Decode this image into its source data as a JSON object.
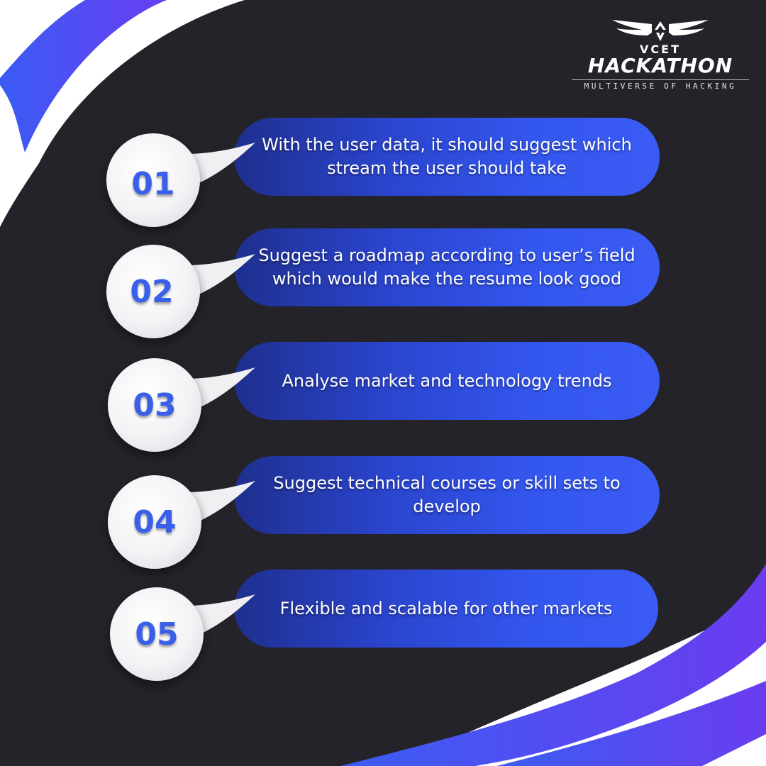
{
  "logo": {
    "top": "VCET",
    "main": "HACKATHON",
    "tagline": "MULTIVERSE OF HACKING"
  },
  "items": [
    {
      "number": "01",
      "text": "With the user data, it should suggest which stream the user should take"
    },
    {
      "number": "02",
      "text": "Suggest a roadmap according to user’s field which would make the resume look good"
    },
    {
      "number": "03",
      "text": "Analyse market and technology trends"
    },
    {
      "number": "04",
      "text": "Suggest technical courses or skill sets to develop"
    },
    {
      "number": "05",
      "text": "Flexible and scalable for other markets"
    }
  ],
  "colors": {
    "background": "#24232a",
    "accent_blue": "#3a5cf4",
    "accent_purple": "#5b3df0",
    "number_blue": "#3a5fe8"
  }
}
